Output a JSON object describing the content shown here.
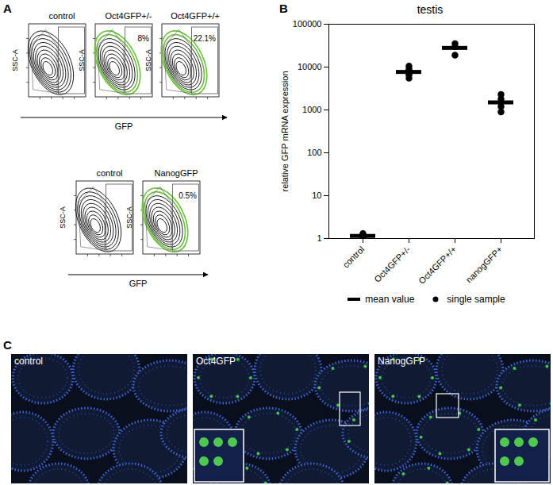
{
  "panel_labels": [
    "A",
    "B",
    "C"
  ],
  "chart_data": [
    {
      "type": "flow_contour",
      "title": "control",
      "xlabel": "GFP",
      "ylabel": "SSC-A",
      "tick_labels": false,
      "color": "#000000"
    },
    {
      "type": "flow_contour",
      "title": "Oct4GFP+/-",
      "xlabel": "GFP",
      "ylabel": "SSC-A",
      "tick_labels": false,
      "annotation": "8%",
      "color": "#6cbf3f"
    },
    {
      "type": "flow_contour",
      "title": "Oct4GFP+/+",
      "xlabel": "GFP",
      "ylabel": "SSC-A",
      "tick_labels": false,
      "annotation": "22.1%",
      "color": "#6cbf3f"
    },
    {
      "type": "flow_contour",
      "title": "control",
      "xlabel": "GFP",
      "ylabel": "SSC-A",
      "tick_labels": false,
      "color": "#000000"
    },
    {
      "type": "flow_contour",
      "title": "NanogGFP",
      "xlabel": "GFP",
      "ylabel": "SSC-A",
      "tick_labels": false,
      "annotation": "0.5%",
      "color": "#6cbf3f"
    },
    {
      "type": "dot",
      "title": "testis",
      "ylabel": "relative GFP mRNA expression",
      "categories": [
        "control",
        "Oct4GFP+/-",
        "Oct4GFP+/+",
        "nanogGFP+"
      ],
      "log": "y",
      "ylim": [
        1,
        100000
      ],
      "yticks": [
        1,
        10,
        100,
        1000,
        10000,
        100000
      ],
      "legend": "bottom",
      "series": [
        {
          "name": "mean value",
          "marker": "line",
          "color": "#000000",
          "values": [
            1.15,
            7700,
            28000,
            1500
          ]
        },
        {
          "name": "single sample",
          "marker": "circle",
          "color": "#000000",
          "values": [
            [
              1.0,
              1.1,
              1.2,
              1.3,
              1.15
            ],
            [
              5500,
              6500,
              7000,
              8000,
              9000,
              10500
            ],
            [
              19000,
              30000,
              35000
            ],
            [
              900,
              1200,
              1500,
              1800,
              2300
            ]
          ]
        }
      ]
    }
  ],
  "images": [
    {
      "title": "control"
    },
    {
      "title": "Oct4GFP"
    },
    {
      "title": "NanogGFP"
    }
  ]
}
